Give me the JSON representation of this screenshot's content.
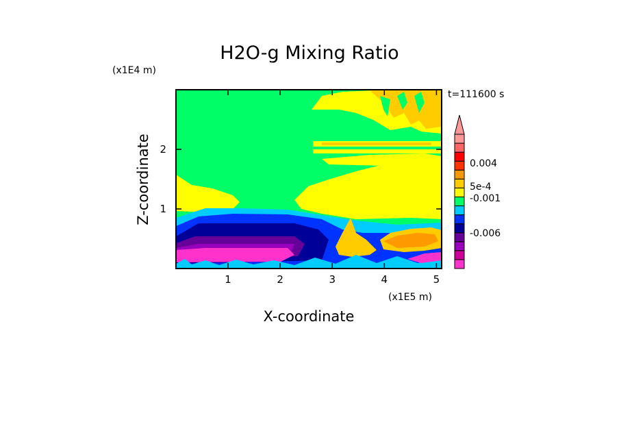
{
  "chart_data": {
    "type": "heatmap",
    "title": "H2O-g Mixing Ratio",
    "time_label": "t=111600 s",
    "xlabel": "X-coordinate",
    "ylabel": "Z-coordinate",
    "x_unit": "(x1E5 m)",
    "y_unit": "(x1E4 m)",
    "x_ticks": [
      "1",
      "2",
      "3",
      "4",
      "5"
    ],
    "y_ticks": [
      "1",
      "2"
    ],
    "xlim": [
      0,
      5.1
    ],
    "ylim": [
      0,
      3
    ],
    "colorbar": {
      "colors": [
        "#ff33cc",
        "#cc0099",
        "#9900bb",
        "#660099",
        "#000099",
        "#0033ff",
        "#00ccff",
        "#00ff66",
        "#ffff00",
        "#ffcc00",
        "#ff9900",
        "#ff3300",
        "#ff0000",
        "#ff6666",
        "#ff9999"
      ],
      "labels": [
        {
          "text": "0.004",
          "value": 0.004
        },
        {
          "text": "5e-4",
          "value": 0.0005
        },
        {
          "text": "-0.001",
          "value": -0.001
        },
        {
          "text": "-0.006",
          "value": -0.006
        }
      ],
      "extend": "max"
    },
    "regions": [
      {
        "level": "near-zero",
        "color": "#00ff66",
        "description": "upper domain background"
      },
      {
        "level": "5e-4",
        "color": "#ffff00",
        "x_range": [
          0,
          5.1
        ],
        "z_range": [
          0.8,
          1.6
        ]
      },
      {
        "level": "positive",
        "color": "#ffcc00",
        "x_range": [
          2.6,
          5.1
        ],
        "z_range": [
          1.8,
          3.0
        ]
      },
      {
        "level": "negative",
        "color": "#0033ff",
        "x_range": [
          0,
          3.0
        ],
        "z_range": [
          0.3,
          0.9
        ]
      },
      {
        "level": "strong negative",
        "color": "#660099",
        "x_range": [
          0,
          2.6
        ],
        "z_range": [
          0.2,
          0.6
        ]
      },
      {
        "level": "most negative",
        "color": "#ff33cc",
        "x_range": [
          0,
          2.6
        ],
        "z_range": [
          0,
          0.3
        ]
      },
      {
        "level": "0.004",
        "color": "#ff9900",
        "x_range": [
          3.1,
          5.0
        ],
        "z_range": [
          0.3,
          0.7
        ]
      }
    ]
  }
}
